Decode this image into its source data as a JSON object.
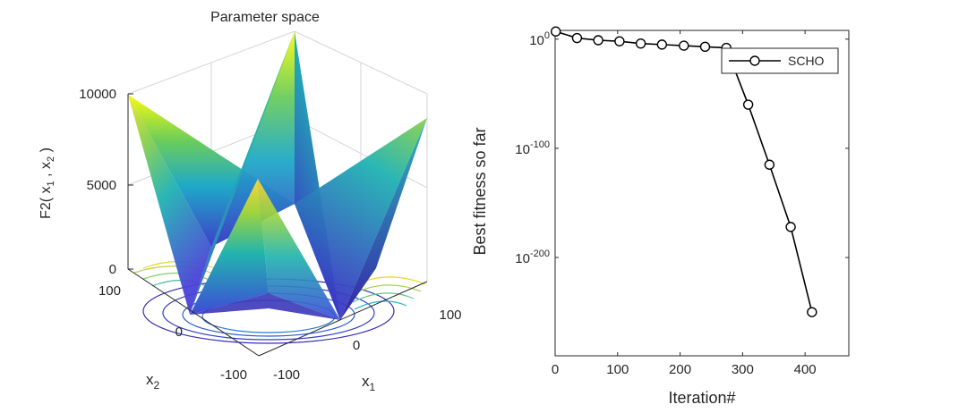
{
  "left_panel": {
    "title": "Parameter space",
    "zlabel": "F2( x₁ , x₂ )",
    "zlabel_parts": {
      "prefix": "F2( x",
      "sub1": "1",
      "mid": " , x",
      "sub2": "2",
      "suffix": " )"
    },
    "xlabel": {
      "base": "x",
      "sub": "1"
    },
    "ylabel": {
      "base": "x",
      "sub": "2"
    },
    "z_ticks": [
      "10000",
      "5000",
      "0"
    ],
    "x1_ticks": [
      "-100",
      "0",
      "100"
    ],
    "x2_ticks": [
      "100",
      "0",
      "-100"
    ],
    "colormap": "parula",
    "colors": {
      "low": "#352a87",
      "mid": "#21a9c6",
      "high": "#f9fb0e"
    }
  },
  "chart_data": [
    {
      "type": "surface",
      "title": "Parameter space",
      "function": "F2",
      "xlabel": "x1",
      "ylabel": "x2",
      "zlabel": "F2( x1 , x2 )",
      "xlim": [
        -100,
        100
      ],
      "ylim": [
        -100,
        100
      ],
      "zlim": [
        0,
        10000
      ],
      "z_ticks": [
        0,
        5000,
        10000
      ],
      "x_ticks": [
        -100,
        0,
        100
      ],
      "y_ticks": [
        -100,
        0,
        100
      ],
      "contours_on_floor": true,
      "grid": true
    },
    {
      "type": "line",
      "title": "",
      "xlabel": "Iteration#",
      "ylabel": "Best fitness so far",
      "y_scale": "log",
      "xlim": [
        0,
        470
      ],
      "ylim_exponent": [
        -290,
        8
      ],
      "x_ticks": [
        "0",
        "100",
        "200",
        "300",
        "400"
      ],
      "y_ticks": [
        {
          "base": "10",
          "exp": "0",
          "value_exp": 0
        },
        {
          "base": "10",
          "exp": "-100",
          "value_exp": -100
        },
        {
          "base": "10",
          "exp": "-200",
          "value_exp": -200
        }
      ],
      "legend": {
        "position": "top-right",
        "entries": [
          "SCHO"
        ]
      },
      "series": [
        {
          "name": "SCHO",
          "marker": "circle",
          "color": "#000000",
          "x": [
            1,
            35,
            69,
            103,
            137,
            171,
            206,
            240,
            274,
            309,
            343,
            377,
            411
          ],
          "log10_y": [
            7,
            1,
            -1,
            -2,
            -4,
            -5,
            -6,
            -7,
            -8,
            -60,
            -115,
            -172,
            -250
          ]
        }
      ]
    }
  ]
}
